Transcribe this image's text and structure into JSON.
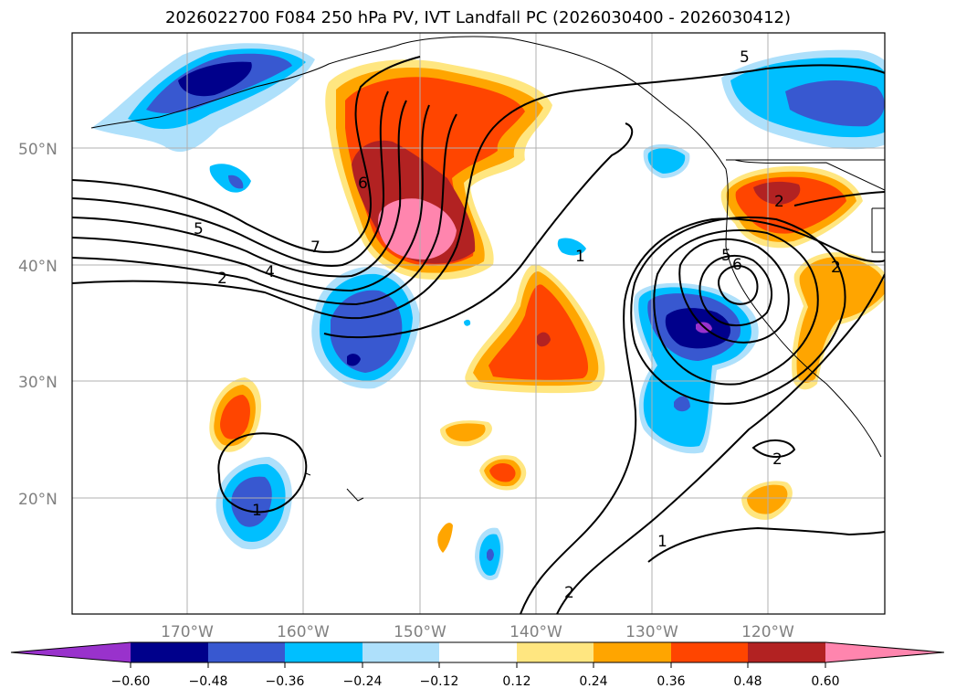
{
  "title": "2026022700 F084 250 hPa PV, IVT Landfall PC (2026030400 - 2026030412)",
  "colors": {
    "neg_0_60_ext": "#9932cc",
    "neg_0_60": "#00008b",
    "neg_0_48": "#3858d0",
    "neg_0_36": "#00bfff",
    "neg_0_24": "#aee0fb",
    "zero": "#ffffff",
    "pos_0_12": "#ffe680",
    "pos_0_24": "#ffa500",
    "pos_0_36": "#ff4500",
    "pos_0_48": "#b22222",
    "pos_0_60_ext": "#ff85ae"
  },
  "axes": {
    "lat_labels": [
      "20°N",
      "30°N",
      "40°N",
      "50°N"
    ],
    "lon_labels": [
      "170°W",
      "160°W",
      "150°W",
      "140°W",
      "130°W",
      "120°W"
    ]
  },
  "colorbar": {
    "ticks": [
      "−0.60",
      "−0.48",
      "−0.36",
      "−0.24",
      "−0.12",
      "0.12",
      "0.24",
      "0.36",
      "0.48",
      "0.60"
    ]
  },
  "contour_labels": [
    "5",
    "7",
    "2",
    "4",
    "6",
    "1",
    "1",
    "2",
    "1",
    "2",
    "5",
    "6",
    "2",
    "2",
    "5"
  ]
}
